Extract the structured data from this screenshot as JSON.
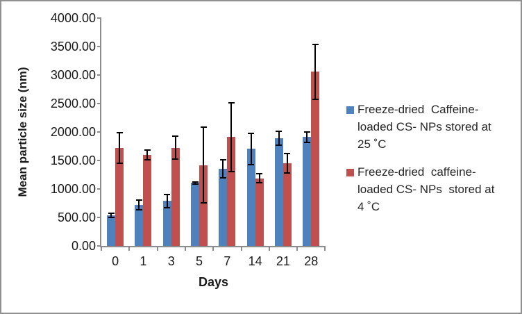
{
  "chart_data": {
    "type": "bar",
    "title": "",
    "xlabel": "Days",
    "ylabel": "Mean particle size (nm)",
    "categories": [
      "0",
      "1",
      "3",
      "5",
      "7",
      "14",
      "21",
      "28"
    ],
    "series": [
      {
        "name": "Freeze-dried Caffeine-loaded CS- NPs stored at 25 ˚C",
        "color": "#4F81BD",
        "values": [
          535,
          720,
          790,
          1105,
          1355,
          1705,
          1890,
          1910
        ],
        "errors": [
          45,
          95,
          130,
          30,
          170,
          285,
          130,
          105
        ]
      },
      {
        "name": "Freeze-dried caffeine-loaded CS- NPs stored at 4 ˚C",
        "color": "#C0504D",
        "values": [
          1715,
          1595,
          1725,
          1420,
          1910,
          1185,
          1450,
          3055
        ],
        "errors": [
          280,
          100,
          210,
          680,
          620,
          90,
          180,
          490
        ]
      }
    ],
    "ylim": [
      0,
      4000
    ],
    "ytick_step": 500,
    "ytick_labels": [
      "0.00",
      "500.00",
      "1000.00",
      "1500.00",
      "2000.00",
      "2500.00",
      "3000.00",
      "3500.00",
      "4000.00"
    ],
    "grid": false,
    "legend_position": "right",
    "error_bars": true
  },
  "axes": {
    "x_title": "Days",
    "y_title": "Mean particle size (nm)"
  },
  "legend": {
    "items": [
      {
        "color": "#4F81BD",
        "label_lines": [
          "Freeze-dried  Caffeine-",
          "loaded CS- NPs stored at",
          "25 ˚C"
        ]
      },
      {
        "color": "#C0504D",
        "label_lines": [
          "Freeze-dried  caffeine-",
          "loaded CS- NPs  stored at",
          "4 ˚C"
        ]
      }
    ]
  },
  "colors": {
    "axis": "#8C8C8C",
    "error_bar": "#000000",
    "chart_border": "#919191",
    "background": "#FFFFFF",
    "series_25c": "#4F81BD",
    "series_4c": "#C0504D"
  }
}
